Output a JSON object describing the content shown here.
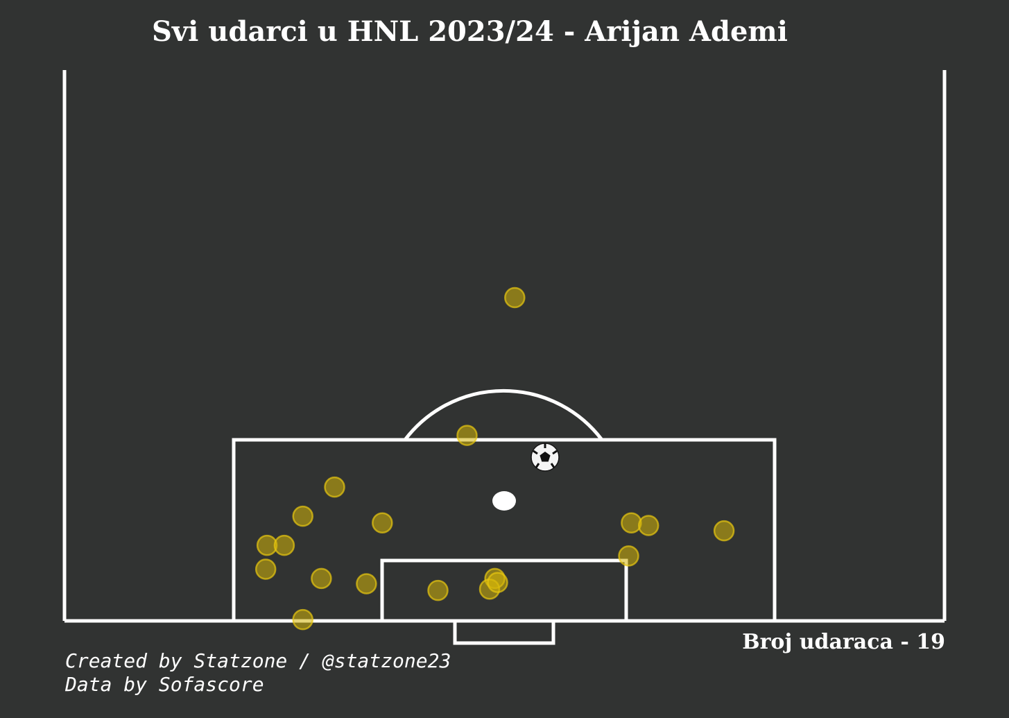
{
  "title": "Svi udarci u HNL 2023/24 - Arijan Ademi",
  "shot_count_label": "Broj udaraca - 19",
  "credits": {
    "line1": "Created by Statzone / @statzone23",
    "line2": "Data by Sofascore"
  },
  "colors": {
    "background": "#313332",
    "lines": "#ffffff",
    "shot_fill": "#d4b40a",
    "shot_edge": "#e8c810"
  },
  "icons": {
    "ball": "soccer-ball-icon"
  },
  "chart_data": {
    "type": "scatter",
    "title": "Svi udarci u HNL 2023/24 - Arijan Ademi",
    "description_units": "pitch coordinates: x = distance from goal line (m), y = lateral offset from pitch centre line (m, negative = left)",
    "total_shots": 19,
    "shots": [
      {
        "x": 23.4,
        "y": 0.8
      },
      {
        "x": 13.0,
        "y": -2.8
      },
      {
        "x": 9.1,
        "y": -12.8
      },
      {
        "x": 6.9,
        "y": -15.2
      },
      {
        "x": 6.4,
        "y": -9.2
      },
      {
        "x": 4.7,
        "y": -17.9
      },
      {
        "x": 4.7,
        "y": -16.6
      },
      {
        "x": 2.9,
        "y": -18.0
      },
      {
        "x": 2.2,
        "y": -13.8
      },
      {
        "x": 1.8,
        "y": -10.4
      },
      {
        "x": 1.3,
        "y": -5.0
      },
      {
        "x": 2.2,
        "y": -0.7
      },
      {
        "x": 1.4,
        "y": -1.1
      },
      {
        "x": -0.9,
        "y": -15.2
      },
      {
        "x": 6.4,
        "y": 9.6
      },
      {
        "x": 6.2,
        "y": 10.9
      },
      {
        "x": 3.9,
        "y": 9.4
      },
      {
        "x": 5.8,
        "y": 16.6
      },
      {
        "x": 1.9,
        "y": -0.5
      }
    ]
  }
}
